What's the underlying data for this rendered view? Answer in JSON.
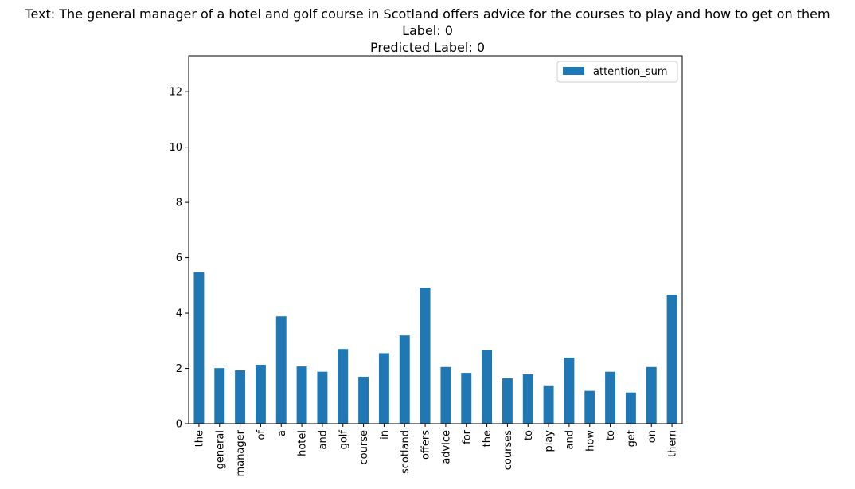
{
  "figure": {
    "title_lines": [
      "Text: The general manager of a hotel and golf course in Scotland offers advice for the courses to play and how to get on them",
      "Label: 0",
      "Predicted Label: 0"
    ]
  },
  "chart_data": {
    "type": "bar",
    "categories": [
      "the",
      "general",
      "manager",
      "of",
      "a",
      "hotel",
      "and",
      "golf",
      "course",
      "in",
      "scotland",
      "offers",
      "advice",
      "for",
      "the",
      "courses",
      "to",
      "play",
      "and",
      "how",
      "to",
      "get",
      "on",
      "them"
    ],
    "series": [
      {
        "name": "attention_sum",
        "color": "#1f77b4",
        "values": [
          5.48,
          2.01,
          1.93,
          2.13,
          3.88,
          2.07,
          1.88,
          2.7,
          1.7,
          2.55,
          3.19,
          4.92,
          2.05,
          1.84,
          2.65,
          1.64,
          1.79,
          1.36,
          2.39,
          1.19,
          1.88,
          1.13,
          2.05,
          4.66
        ]
      }
    ],
    "ylim": [
      0,
      13.3
    ],
    "yticks": [
      0,
      2,
      4,
      6,
      8,
      10,
      12
    ],
    "xlabel": "",
    "ylabel": "",
    "grid": false,
    "legend_position": "top-right"
  }
}
